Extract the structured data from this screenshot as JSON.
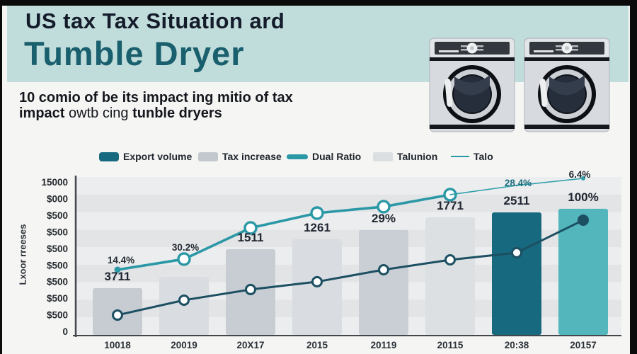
{
  "header": {
    "title_line1": "US tax Tax Situation ard",
    "title_line2": "Tumble Dryer"
  },
  "subtitle": {
    "line1": "10 comio of be its impact ing mitio of tax",
    "line2_bold1": "impact ",
    "line2_regular": "owtb cing ",
    "line2_bold2": "tunble dryers"
  },
  "legend": {
    "items": [
      {
        "label": "Export volume",
        "swatch": "dark-bar"
      },
      {
        "label": "Tax increase",
        "swatch": "gray-bar"
      },
      {
        "label": "Dual Ratio",
        "swatch": "thick-line"
      },
      {
        "label": "Talunion",
        "swatch": "light-bar"
      },
      {
        "label": "Talo",
        "swatch": "thin-line"
      }
    ]
  },
  "chart_data": {
    "type": "bar+line combo",
    "title": "",
    "ylabel": "Lxoor rreeses",
    "ylim": [
      0,
      15000
    ],
    "grid": "horizontal stripe bands",
    "legend_position": "top",
    "y_ticks": [
      "15000",
      "$000",
      "$500",
      "$500",
      "$500",
      "$500",
      "$500",
      "$500",
      "$500",
      "0"
    ],
    "categories": [
      "10018",
      "20019",
      "20X17",
      "2015",
      "20119",
      "20115",
      "20:38",
      "20157"
    ],
    "bars": {
      "name": "Tax increase / Export volume bars",
      "values": [
        4440,
        5520,
        8140,
        9080,
        9960,
        11170,
        11640,
        11980
      ],
      "labels": [
        "3711",
        "",
        "1511",
        "1261",
        "29%",
        "1771",
        "2511",
        "100%"
      ],
      "colors": [
        "#c6ccd2",
        "#d9dce0",
        "#c7cdd3",
        "#d9dce0",
        "#c9cfd4",
        "#dce0e2",
        "#17697f",
        "#52b6bc"
      ]
    },
    "series": [
      {
        "name": "Dual Ratio",
        "type": "line",
        "style": "thick",
        "color": "#2b98a6",
        "start": 0,
        "values": [
          6190,
          7200,
          10160,
          11570,
          12180,
          13320
        ]
      },
      {
        "name": "Talo",
        "type": "line",
        "style": "thin",
        "color": "#2f9fab",
        "start": 5,
        "values": [
          13320,
          14200,
          14870
        ]
      },
      {
        "name": "Export volume trend",
        "type": "line",
        "style": "dark",
        "color": "#1c4f62",
        "start": 0,
        "values": [
          1880,
          3300,
          4310,
          5050,
          6190,
          7130,
          7810,
          10900
        ]
      }
    ],
    "point_labels": [
      {
        "series": 0,
        "index": 0,
        "text": "14.4%",
        "color": "#232a33"
      },
      {
        "series": 0,
        "index": 1,
        "text": "30.2%",
        "color": "#232a33"
      },
      {
        "series": 1,
        "index": 1,
        "text": "28.4%",
        "color": "#1d6e7e"
      },
      {
        "series": 1,
        "index": 2,
        "text": "6.4%",
        "color": "#232a33"
      }
    ]
  }
}
